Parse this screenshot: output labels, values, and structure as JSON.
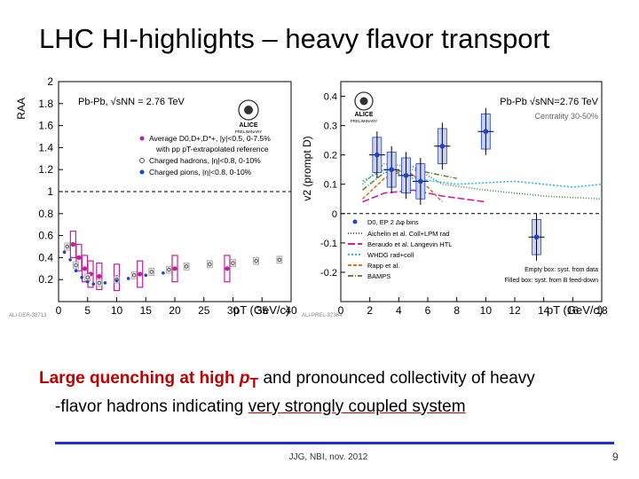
{
  "slide": {
    "title": "LHC HI-highlights – heavy flavor transport",
    "caption_part1": "Large quenching at high ",
    "caption_pt": "p",
    "caption_pt_sub": "T",
    "caption_part2": " and pronounced collectivity of heavy",
    "caption_part3": "-flavor hadrons indicating ",
    "caption_underlined": "very strongly coupled system",
    "footer": "JJG, NBI, nov. 2012",
    "page_number": "9"
  },
  "chart_data": [
    {
      "type": "scatter",
      "title": "",
      "xlabel": "pT (GeV/c)",
      "ylabel": "RAA",
      "xlim": [
        0,
        40
      ],
      "ylim": [
        0,
        2
      ],
      "x_ticks": [
        "0",
        "5",
        "10",
        "15",
        "20",
        "25",
        "30",
        "35",
        "40"
      ],
      "y_ticks": [
        "0.2",
        "0.4",
        "0.6",
        "0.8",
        "1",
        "1.2",
        "1.4",
        "1.6",
        "1.8",
        "2"
      ],
      "system_label": "Pb-Pb, √sNN = 2.76 TeV",
      "logo_text": "ALICE",
      "logo_sub": "PRELIMINARY",
      "figure_id": "ALI-DER-38713",
      "legend": [
        "Average D0,D+,D*+, |y|<0.5, 0-7.5%",
        "with pp pT-extrapolated reference",
        "Charged hadrons, |η|<0.8, 0-10%",
        "Charged pions, |η|<0.8, 0-10%"
      ],
      "series": [
        {
          "name": "Average D0,D+,D*+",
          "color": "#c0209a",
          "points": [
            {
              "x": 2.5,
              "y": 0.52
            },
            {
              "x": 3.5,
              "y": 0.4
            },
            {
              "x": 4.5,
              "y": 0.3
            },
            {
              "x": 5.5,
              "y": 0.25
            },
            {
              "x": 7.0,
              "y": 0.23
            },
            {
              "x": 10.0,
              "y": 0.22
            },
            {
              "x": 14.0,
              "y": 0.25
            },
            {
              "x": 20.0,
              "y": 0.3
            },
            {
              "x": 29.0,
              "y": 0.3
            }
          ]
        },
        {
          "name": "Charged hadrons",
          "color": "#555555",
          "points": [
            {
              "x": 1.5,
              "y": 0.5
            },
            {
              "x": 3.0,
              "y": 0.33
            },
            {
              "x": 5.0,
              "y": 0.22
            },
            {
              "x": 7.0,
              "y": 0.17
            },
            {
              "x": 10.0,
              "y": 0.2
            },
            {
              "x": 13.0,
              "y": 0.24
            },
            {
              "x": 16.0,
              "y": 0.27
            },
            {
              "x": 19.0,
              "y": 0.29
            },
            {
              "x": 22.0,
              "y": 0.32
            },
            {
              "x": 26.0,
              "y": 0.34
            },
            {
              "x": 30.0,
              "y": 0.35
            },
            {
              "x": 34.0,
              "y": 0.37
            },
            {
              "x": 38.0,
              "y": 0.38
            }
          ]
        },
        {
          "name": "Charged pions",
          "color": "#1f3fd0",
          "points": [
            {
              "x": 1.0,
              "y": 0.45
            },
            {
              "x": 2.0,
              "y": 0.38
            },
            {
              "x": 3.0,
              "y": 0.28
            },
            {
              "x": 4.0,
              "y": 0.22
            },
            {
              "x": 5.0,
              "y": 0.18
            },
            {
              "x": 6.0,
              "y": 0.16
            },
            {
              "x": 8.0,
              "y": 0.17
            },
            {
              "x": 10.0,
              "y": 0.19
            },
            {
              "x": 12.0,
              "y": 0.21
            },
            {
              "x": 15.0,
              "y": 0.24
            },
            {
              "x": 18.0,
              "y": 0.26
            }
          ]
        }
      ]
    },
    {
      "type": "scatter",
      "title": "",
      "xlabel": "pT (GeV/c)",
      "ylabel": "v2 (prompt D)",
      "xlim": [
        0,
        18
      ],
      "ylim": [
        -0.3,
        0.45
      ],
      "x_ticks": [
        "0",
        "2",
        "4",
        "6",
        "8",
        "10",
        "12",
        "14",
        "16",
        "18"
      ],
      "y_ticks": [
        "-0.2",
        "-0.1",
        "0",
        "0.1",
        "0.2",
        "0.3",
        "0.4"
      ],
      "system_label": "Pb-Pb √sNN=2.76 TeV",
      "centrality_label": "Centrality 30-50%",
      "logo_text": "ALICE",
      "logo_sub": "PRELIMINARY",
      "figure_id": "ALI-PREL-37384",
      "legend": [
        "D0, EP 2 Δφ bins",
        "Aichelin et al. Coll+LPM rad",
        "Beraudo et al. Langevin HTL",
        "WHDG rad+coll",
        "Rapp et al.",
        "BAMPS"
      ],
      "box_notes": [
        "Empty box: syst. from data",
        "Filled box: syst. from B feed-down"
      ],
      "points": [
        {
          "x": 2.5,
          "y": 0.2
        },
        {
          "x": 3.5,
          "y": 0.15
        },
        {
          "x": 4.5,
          "y": 0.13
        },
        {
          "x": 5.5,
          "y": 0.11
        },
        {
          "x": 7.0,
          "y": 0.23
        },
        {
          "x": 10.0,
          "y": 0.28
        },
        {
          "x": 13.5,
          "y": -0.08
        }
      ],
      "model_colors": {
        "Aichelin et al. Coll+LPM rad": "#3a8f3a",
        "Beraudo et al. Langevin HTL": "#d020a0",
        "WHDG rad+coll": "#30b8e0",
        "Rapp et al.": "#e07020",
        "BAMPS": "#5a8a3a"
      }
    }
  ]
}
